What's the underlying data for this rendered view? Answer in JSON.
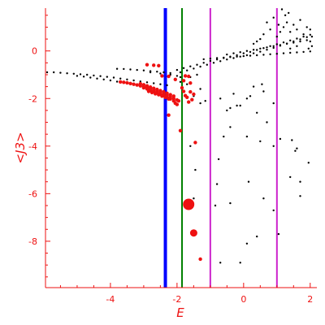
{
  "chart_data": {
    "type": "scatter",
    "title": "",
    "xlabel": "E",
    "ylabel": "<J3>",
    "xlim": [
      -5.95,
      2.2
    ],
    "ylim": [
      -9.95,
      1.8
    ],
    "x_ticks": [
      -4,
      -2,
      0,
      2
    ],
    "y_ticks": [
      0,
      -2,
      -4,
      -6,
      -8
    ],
    "x_tick_labels": [
      "-4",
      "-2",
      "0",
      "2"
    ],
    "y_tick_labels": [
      "0",
      "-2",
      "-4",
      "-6",
      "-8"
    ],
    "grid": false,
    "vertical_lines": [
      {
        "x": -2.35,
        "color": "#0000ff",
        "width": 4
      },
      {
        "x": -1.85,
        "color": "#008000",
        "width": 2
      },
      {
        "x": -1.0,
        "color": "#cc22cc",
        "width": 2
      },
      {
        "x": 1.0,
        "color": "#cc22cc",
        "width": 2
      }
    ],
    "series": [
      {
        "color": "#000000",
        "marker_size": 1.2,
        "points": [
          [
            -5.9,
            -0.9
          ],
          [
            -5.7,
            -0.9
          ],
          [
            -5.5,
            -0.92
          ],
          [
            -5.3,
            -0.94
          ],
          [
            -5.1,
            -0.96
          ],
          [
            -4.9,
            -0.98
          ],
          [
            -4.7,
            -1.0
          ],
          [
            -4.5,
            -1.03
          ],
          [
            -4.3,
            -1.06
          ],
          [
            -4.1,
            -1.09
          ],
          [
            -3.9,
            -1.12
          ],
          [
            -3.7,
            -1.16
          ],
          [
            -3.5,
            -1.2
          ],
          [
            -3.3,
            -1.24
          ],
          [
            -3.1,
            -1.28
          ],
          [
            -2.9,
            -1.32
          ],
          [
            -2.7,
            -1.36
          ],
          [
            -2.5,
            -1.4
          ],
          [
            -2.3,
            -1.44
          ],
          [
            -5.0,
            -1.05
          ],
          [
            -4.8,
            -1.08
          ],
          [
            -4.6,
            -1.12
          ],
          [
            -4.4,
            -1.16
          ],
          [
            -4.2,
            -1.2
          ],
          [
            -4.0,
            -1.24
          ],
          [
            -3.8,
            -1.29
          ],
          [
            -3.6,
            -1.34
          ],
          [
            -3.4,
            -1.39
          ],
          [
            -3.2,
            -1.44
          ],
          [
            -3.0,
            -1.5
          ],
          [
            -2.8,
            -1.56
          ],
          [
            -2.6,
            -1.62
          ],
          [
            -2.4,
            -1.68
          ],
          [
            -3.8,
            -0.75
          ],
          [
            -3.6,
            -0.76
          ],
          [
            -3.4,
            -0.78
          ],
          [
            -3.2,
            -0.8
          ],
          [
            -3.0,
            -0.82
          ],
          [
            -2.8,
            -0.85
          ],
          [
            -2.6,
            -0.87
          ],
          [
            -2.4,
            -0.9
          ],
          [
            -2.2,
            -0.93
          ],
          [
            -2.0,
            -0.8
          ],
          [
            -1.8,
            -0.72
          ],
          [
            -1.6,
            -0.65
          ],
          [
            -1.4,
            -0.58
          ],
          [
            -1.2,
            -0.5
          ],
          [
            -1.0,
            -0.42
          ],
          [
            -0.8,
            -0.36
          ],
          [
            -0.6,
            -0.3
          ],
          [
            -0.4,
            -0.24
          ],
          [
            -0.2,
            -0.18
          ],
          [
            0.0,
            -0.1
          ],
          [
            0.2,
            -0.04
          ],
          [
            0.4,
            0.04
          ],
          [
            0.6,
            0.12
          ],
          [
            0.8,
            0.2
          ],
          [
            1.0,
            0.28
          ],
          [
            1.2,
            0.36
          ],
          [
            1.4,
            0.44
          ],
          [
            1.6,
            0.52
          ],
          [
            1.8,
            0.6
          ],
          [
            2.0,
            0.68
          ],
          [
            -1.9,
            -0.9
          ],
          [
            -1.7,
            -0.82
          ],
          [
            -1.5,
            -0.74
          ],
          [
            -1.3,
            -0.66
          ],
          [
            -1.1,
            -0.58
          ],
          [
            -0.9,
            -0.5
          ],
          [
            -0.7,
            -0.43
          ],
          [
            -0.5,
            -0.36
          ],
          [
            -0.3,
            -0.3
          ],
          [
            -0.1,
            -0.24
          ],
          [
            0.1,
            -0.18
          ],
          [
            0.3,
            -0.1
          ],
          [
            0.5,
            -0.03
          ],
          [
            0.7,
            0.05
          ],
          [
            0.9,
            0.13
          ],
          [
            1.1,
            0.22
          ],
          [
            1.3,
            0.31
          ],
          [
            1.5,
            0.4
          ],
          [
            1.7,
            0.49
          ],
          [
            1.9,
            0.58
          ],
          [
            -1.2,
            -0.35
          ],
          [
            -1.0,
            -0.32
          ],
          [
            -0.8,
            -0.3
          ],
          [
            -0.6,
            -0.28
          ],
          [
            -0.4,
            -0.26
          ],
          [
            -0.2,
            -0.24
          ],
          [
            0.0,
            -0.22
          ],
          [
            0.2,
            -0.2
          ],
          [
            0.4,
            -0.18
          ],
          [
            0.6,
            -0.16
          ],
          [
            0.8,
            -0.14
          ],
          [
            1.0,
            -0.12
          ],
          [
            1.2,
            -0.1
          ],
          [
            1.4,
            -0.08
          ],
          [
            1.6,
            -0.06
          ],
          [
            1.8,
            -0.04
          ],
          [
            2.0,
            -0.02
          ],
          [
            -0.5,
            -0.15
          ],
          [
            -0.3,
            -0.1
          ],
          [
            -0.1,
            -0.05
          ],
          [
            0.1,
            0.0
          ],
          [
            0.3,
            0.05
          ],
          [
            0.5,
            0.1
          ],
          [
            0.7,
            0.15
          ],
          [
            0.9,
            0.2
          ],
          [
            1.1,
            0.25
          ],
          [
            1.3,
            0.3
          ],
          [
            1.5,
            0.35
          ],
          [
            1.7,
            0.4
          ],
          [
            1.9,
            0.45
          ],
          [
            1.2,
            1.0
          ],
          [
            1.3,
            1.2
          ],
          [
            1.4,
            0.8
          ],
          [
            1.5,
            1.1
          ],
          [
            1.6,
            0.9
          ],
          [
            1.7,
            1.3
          ],
          [
            1.8,
            0.7
          ],
          [
            1.9,
            1.0
          ],
          [
            2.0,
            0.9
          ],
          [
            2.05,
            0.6
          ],
          [
            1.1,
            0.8
          ],
          [
            1.0,
            0.6
          ],
          [
            1.05,
            1.1
          ],
          [
            1.25,
            1.5
          ],
          [
            1.15,
            1.75
          ],
          [
            1.35,
            1.6
          ],
          [
            0.8,
            0.9
          ],
          [
            0.6,
            0.7
          ],
          [
            0.7,
            1.2
          ],
          [
            0.9,
            1.4
          ],
          [
            0.5,
            0.5
          ],
          [
            0.4,
            0.4
          ],
          [
            0.3,
            0.3
          ],
          [
            2.0,
            0.4
          ],
          [
            2.05,
            0.2
          ],
          [
            1.95,
            0.1
          ],
          [
            1.6,
            0.2
          ],
          [
            1.4,
            0.1
          ],
          [
            -2.8,
            -0.9
          ],
          [
            -2.5,
            -0.95
          ],
          [
            -2.2,
            -1.0
          ],
          [
            -2.0,
            -1.05
          ],
          [
            -1.9,
            -1.3
          ],
          [
            -1.7,
            -1.4
          ],
          [
            -1.6,
            -1.1
          ],
          [
            -1.4,
            -1.0
          ],
          [
            -1.3,
            -1.6
          ],
          [
            -1.15,
            -2.1
          ],
          [
            -1.9,
            -1.1
          ],
          [
            -1.5,
            -1.9
          ],
          [
            -1.3,
            -2.2
          ],
          [
            -0.7,
            -2.0
          ],
          [
            -0.5,
            -2.5
          ],
          [
            -0.3,
            -1.8
          ],
          [
            -0.1,
            -2.3
          ],
          [
            0.1,
            -2.0
          ],
          [
            0.3,
            -1.5
          ],
          [
            0.6,
            -1.7
          ],
          [
            0.9,
            -2.2
          ],
          [
            -0.4,
            -2.4
          ],
          [
            -0.2,
            -2.3
          ],
          [
            0.2,
            -1.9
          ],
          [
            0.4,
            -2.6
          ],
          [
            0.7,
            -3.0
          ],
          [
            0.55,
            -1.4
          ],
          [
            -0.6,
            -3.6
          ],
          [
            -0.4,
            -3.2
          ],
          [
            0.1,
            -3.6
          ],
          [
            0.5,
            -3.8
          ],
          [
            1.1,
            -3.7
          ],
          [
            1.45,
            -3.75
          ],
          [
            0.9,
            -4.0
          ],
          [
            1.6,
            -4.1
          ],
          [
            1.95,
            -4.7
          ],
          [
            0.6,
            -6.2
          ],
          [
            0.15,
            -5.5
          ],
          [
            -0.4,
            -6.4
          ],
          [
            -0.8,
            -5.6
          ],
          [
            -0.85,
            -6.5
          ],
          [
            1.4,
            -5.3
          ],
          [
            1.7,
            -6.1
          ],
          [
            0.9,
            -6.7
          ],
          [
            1.05,
            -7.7
          ],
          [
            0.4,
            -7.8
          ],
          [
            0.1,
            -8.1
          ],
          [
            -0.1,
            -8.9
          ],
          [
            -0.7,
            -8.9
          ],
          [
            -1.5,
            -6.2
          ],
          [
            -1.45,
            -5.0
          ],
          [
            -1.6,
            -4.0
          ],
          [
            -0.75,
            -4.55
          ],
          [
            1.55,
            -4.2
          ],
          [
            1.7,
            -5.5
          ]
        ]
      },
      {
        "color": "#ee1111",
        "marker_size": 2.2,
        "points": [
          [
            -3.7,
            -1.3
          ],
          [
            -3.6,
            -1.32
          ],
          [
            -3.5,
            -1.34
          ],
          [
            -3.4,
            -1.37
          ],
          [
            -3.3,
            -1.4
          ],
          [
            -3.2,
            -1.43
          ],
          [
            -3.1,
            -1.47
          ],
          [
            -3.0,
            -1.51
          ],
          [
            -2.9,
            -1.55
          ],
          [
            -2.8,
            -1.6
          ],
          [
            -2.7,
            -1.65
          ],
          [
            -2.6,
            -1.7
          ],
          [
            -2.5,
            -1.76
          ],
          [
            -2.4,
            -1.82
          ],
          [
            -2.3,
            -1.88
          ],
          [
            -2.2,
            -1.94
          ],
          [
            -2.1,
            -2.0
          ],
          [
            -2.0,
            -2.06
          ],
          [
            -1.95,
            -2.1
          ],
          [
            -3.1,
            -1.38
          ],
          [
            -3.0,
            -1.42
          ],
          [
            -2.9,
            -1.47
          ],
          [
            -2.8,
            -1.52
          ],
          [
            -2.7,
            -1.57
          ],
          [
            -2.6,
            -1.62
          ],
          [
            -2.5,
            -1.67
          ],
          [
            -2.4,
            -1.72
          ],
          [
            -2.3,
            -1.78
          ],
          [
            -2.2,
            -1.84
          ],
          [
            -2.1,
            -1.9
          ],
          [
            -3.0,
            -1.55
          ],
          [
            -2.9,
            -1.6
          ],
          [
            -2.8,
            -1.65
          ],
          [
            -2.7,
            -1.7
          ],
          [
            -2.6,
            -1.76
          ],
          [
            -2.5,
            -1.82
          ],
          [
            -2.4,
            -1.88
          ],
          [
            -2.3,
            -1.94
          ],
          [
            -2.2,
            -2.02
          ],
          [
            -2.1,
            -2.1
          ],
          [
            -2.05,
            -2.2
          ],
          [
            -2.0,
            -2.25
          ],
          [
            -2.85,
            -1.7
          ],
          [
            -2.75,
            -1.75
          ],
          [
            -2.65,
            -1.8
          ],
          [
            -2.55,
            -1.84
          ],
          [
            -2.45,
            -1.9
          ],
          [
            -2.35,
            -1.95
          ],
          [
            -2.25,
            -2.02
          ],
          [
            -2.9,
            -0.58
          ],
          [
            -2.7,
            -0.6
          ],
          [
            -2.55,
            -0.62
          ],
          [
            -2.45,
            -1.05
          ],
          [
            -2.25,
            -1.07
          ],
          [
            -2.05,
            -1.2
          ],
          [
            -1.8,
            -1.25
          ],
          [
            -1.6,
            -1.35
          ],
          [
            -1.75,
            -1.05
          ],
          [
            -1.65,
            -1.07
          ],
          [
            -1.85,
            -1.55
          ],
          [
            -1.8,
            -1.7
          ],
          [
            -1.75,
            -1.88
          ],
          [
            -1.7,
            -1.95
          ],
          [
            -1.6,
            -1.72
          ],
          [
            -1.5,
            -1.82
          ],
          [
            -1.55,
            -2.05
          ],
          [
            -1.65,
            -2.15
          ],
          [
            -1.45,
            -3.85
          ],
          [
            -2.25,
            -2.7
          ],
          [
            -1.9,
            -3.35
          ],
          [
            -1.3,
            -8.75
          ]
        ]
      },
      {
        "color": "#ee1111",
        "marker_size": 7,
        "points": [
          [
            -1.65,
            -6.45
          ]
        ]
      },
      {
        "color": "#ee1111",
        "marker_size": 4.5,
        "points": [
          [
            -1.5,
            -7.65
          ]
        ]
      }
    ]
  }
}
